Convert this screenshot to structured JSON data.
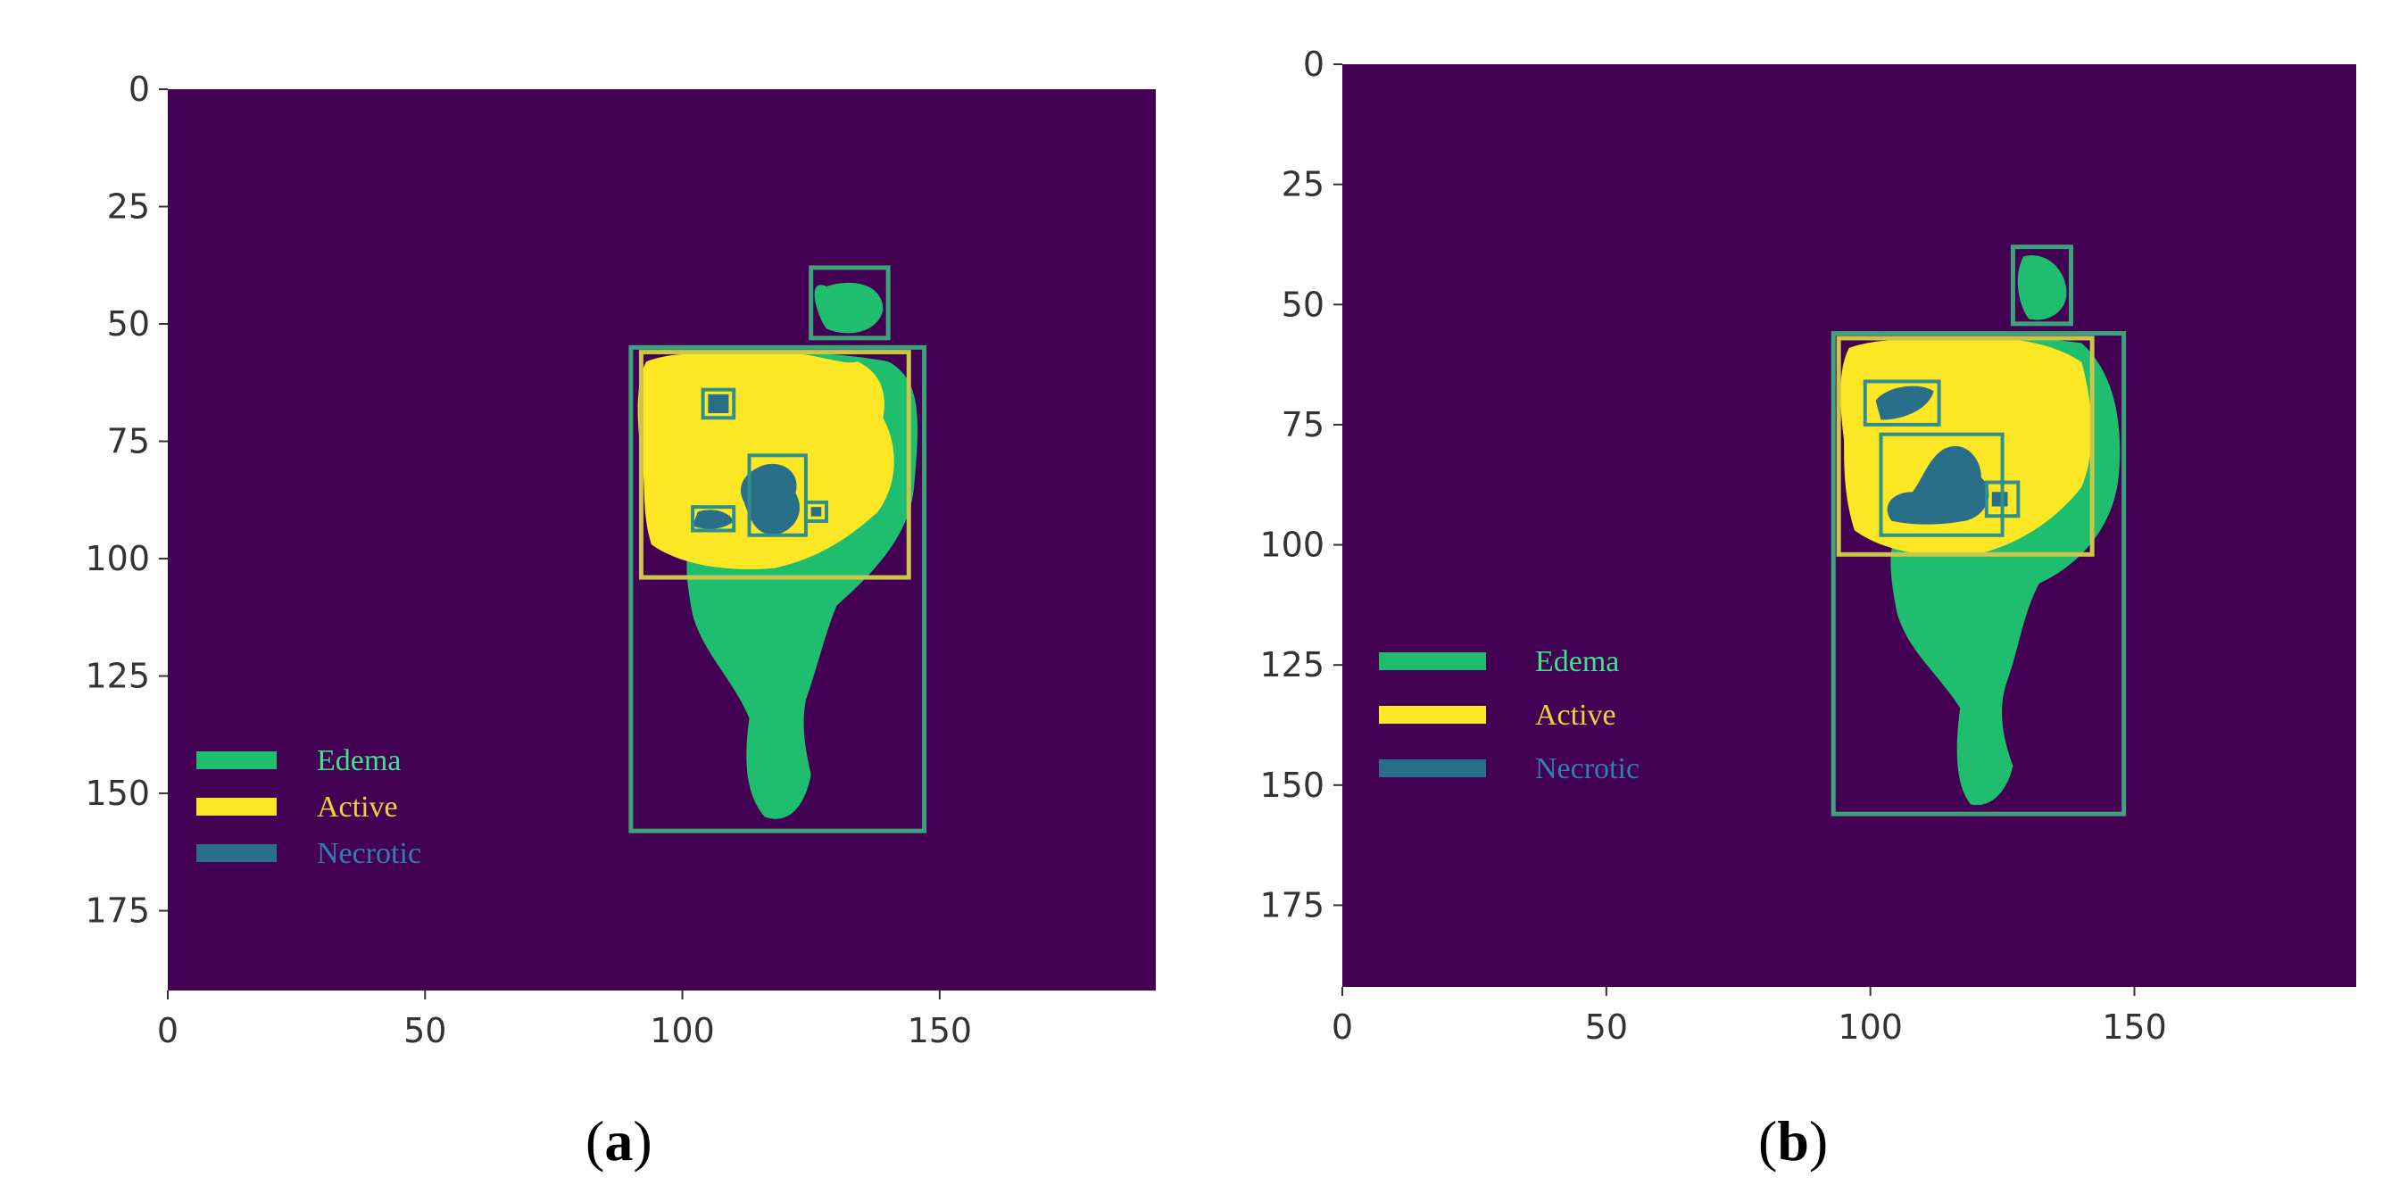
{
  "colors": {
    "background": "#440154",
    "edema": "#1fbe6e",
    "active": "#fde725",
    "necrotic": "#2a6f8a",
    "edema_box": "#3ea37a",
    "active_box": "#c9c64a",
    "necrotic_box": "#2f8f8a",
    "edema_text": "#3fe28a",
    "active_text": "#e8d53a",
    "necrotic_text": "#2f7fb0"
  },
  "chart_data": [
    {
      "type": "heatmap",
      "panel_label": "a",
      "xlim": [
        0,
        192
      ],
      "ylim": [
        192,
        0
      ],
      "xticks": [
        "0",
        "50",
        "100",
        "150"
      ],
      "yticks": [
        "0",
        "25",
        "50",
        "75",
        "100",
        "125",
        "150",
        "175"
      ],
      "legend": [
        {
          "name": "Edema",
          "color_key": "edema"
        },
        {
          "name": "Active",
          "color_key": "active"
        },
        {
          "name": "Necrotic",
          "color_key": "necrotic"
        }
      ],
      "boxes": [
        {
          "class": "edema",
          "x0": 125,
          "y0": 38,
          "x1": 140,
          "y1": 53
        },
        {
          "class": "edema",
          "x0": 90,
          "y0": 55,
          "x1": 147,
          "y1": 158
        },
        {
          "class": "active",
          "x0": 92,
          "y0": 56,
          "x1": 144,
          "y1": 104
        },
        {
          "class": "necrotic",
          "x0": 104,
          "y0": 64,
          "x1": 110,
          "y1": 70
        },
        {
          "class": "necrotic",
          "x0": 113,
          "y0": 78,
          "x1": 124,
          "y1": 95
        },
        {
          "class": "necrotic",
          "x0": 102,
          "y0": 89,
          "x1": 110,
          "y1": 94
        },
        {
          "class": "necrotic",
          "x0": 124,
          "y0": 88,
          "x1": 128,
          "y1": 92
        }
      ]
    },
    {
      "type": "heatmap",
      "panel_label": "b",
      "xlim": [
        0,
        192
      ],
      "ylim": [
        192,
        0
      ],
      "xticks": [
        "0",
        "50",
        "100",
        "150"
      ],
      "yticks": [
        "0",
        "25",
        "50",
        "75",
        "100",
        "125",
        "150",
        "175"
      ],
      "legend": [
        {
          "name": "Edema",
          "color_key": "edema"
        },
        {
          "name": "Active",
          "color_key": "active"
        },
        {
          "name": "Necrotic",
          "color_key": "necrotic"
        }
      ],
      "boxes": [
        {
          "class": "edema",
          "x0": 127,
          "y0": 38,
          "x1": 138,
          "y1": 54
        },
        {
          "class": "edema",
          "x0": 93,
          "y0": 56,
          "x1": 148,
          "y1": 156
        },
        {
          "class": "active",
          "x0": 94,
          "y0": 57,
          "x1": 142,
          "y1": 102
        },
        {
          "class": "necrotic",
          "x0": 99,
          "y0": 66,
          "x1": 113,
          "y1": 75
        },
        {
          "class": "necrotic",
          "x0": 102,
          "y0": 77,
          "x1": 125,
          "y1": 98
        },
        {
          "class": "necrotic",
          "x0": 122,
          "y0": 87,
          "x1": 128,
          "y1": 94
        }
      ]
    }
  ]
}
